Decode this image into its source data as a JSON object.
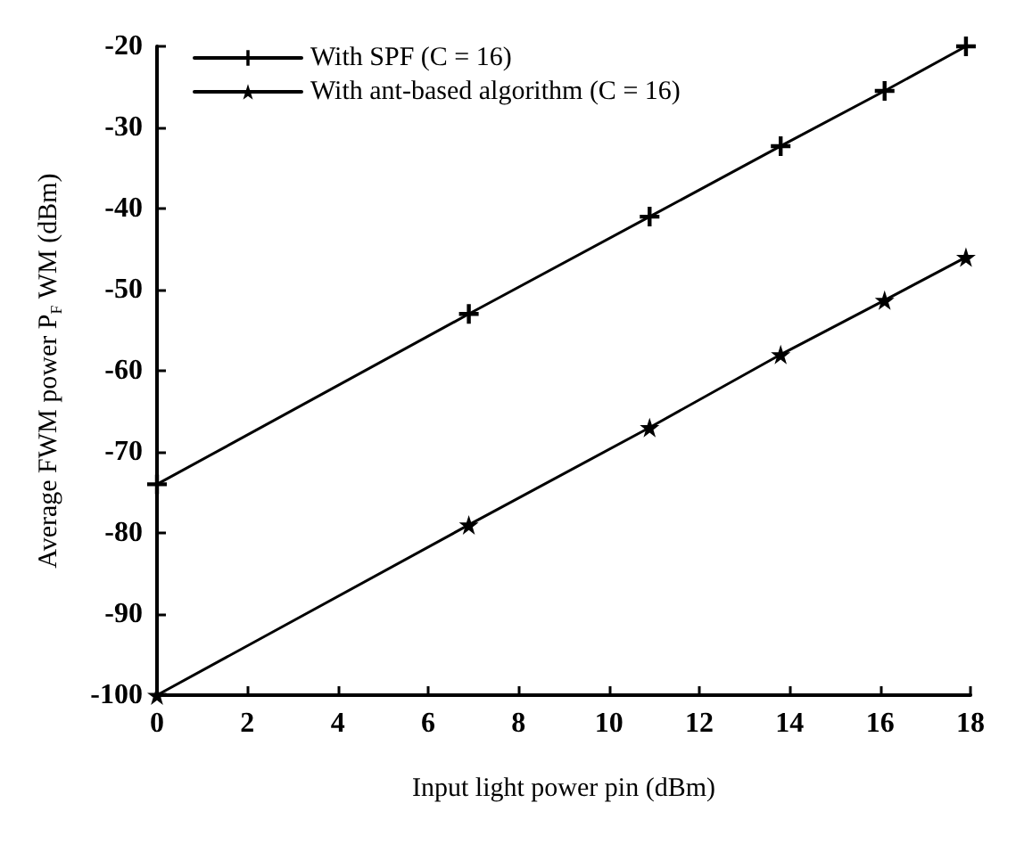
{
  "chart_data": {
    "type": "line",
    "xlabel": "Input light power pin (dBm)",
    "ylabel": "Average FWM power P$_{F}$ WM (dBm)",
    "xlim": [
      0,
      18
    ],
    "xticks": [
      0,
      2,
      4,
      6,
      8,
      10,
      12,
      14,
      16,
      18
    ],
    "ylim": [
      -100,
      -20
    ],
    "yticks": [
      -100,
      -90,
      -80,
      -70,
      -60,
      -50,
      -40,
      -30,
      -20
    ],
    "grid": false,
    "legend": "top left",
    "line_style": "solid",
    "series": [
      {
        "name": "With SPF (C = 16)",
        "color": "#000000",
        "marker": "cross",
        "x": [
          0,
          6.9,
          10.9,
          13.8,
          16.1,
          17.9
        ],
        "values": [
          -74,
          -53,
          -41,
          -32.3,
          -25.5,
          -20
        ]
      },
      {
        "name": "With ant-based algorithm (C = 16)",
        "color": "#000000",
        "marker": "star",
        "x": [
          0,
          6.9,
          10.9,
          13.8,
          16.1,
          17.9
        ],
        "values": [
          -100,
          -79,
          -67,
          -58,
          -51.3,
          -46
        ]
      }
    ]
  }
}
